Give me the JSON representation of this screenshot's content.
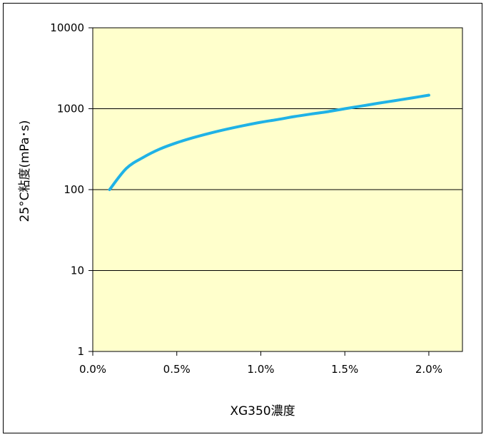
{
  "chart_data": {
    "type": "line",
    "title": "",
    "xlabel": "XG350濃度",
    "ylabel": "25°C粘度(mPa･s)",
    "x_scale": "linear",
    "y_scale": "log",
    "xlim": [
      0.0,
      2.2
    ],
    "ylim": [
      1,
      10000
    ],
    "x_ticks": [
      0.0,
      0.5,
      1.0,
      1.5,
      2.0
    ],
    "x_tick_labels": [
      "0.0%",
      "0.5%",
      "1.0%",
      "1.5%",
      "2.0%"
    ],
    "y_ticks": [
      1,
      10,
      100,
      1000,
      10000
    ],
    "y_tick_labels": [
      "1",
      "10",
      "100",
      "1000",
      "10000"
    ],
    "grid": "horizontal major",
    "legend": "none",
    "colors": {
      "plot_background": "#ffffcc",
      "line": "#1fb2e6",
      "grid": "#000000"
    },
    "series": [
      {
        "x": [
          0.1,
          0.2,
          0.3,
          0.4,
          0.5,
          0.6,
          0.7,
          0.8,
          0.9,
          1.0,
          1.1,
          1.2,
          1.3,
          1.4,
          1.5,
          1.6,
          1.7,
          1.8,
          1.9,
          2.0
        ],
        "values": [
          100,
          183,
          250,
          318,
          380,
          440,
          500,
          560,
          620,
          680,
          735,
          800,
          860,
          920,
          1000,
          1080,
          1170,
          1260,
          1360,
          1470
        ]
      }
    ]
  }
}
